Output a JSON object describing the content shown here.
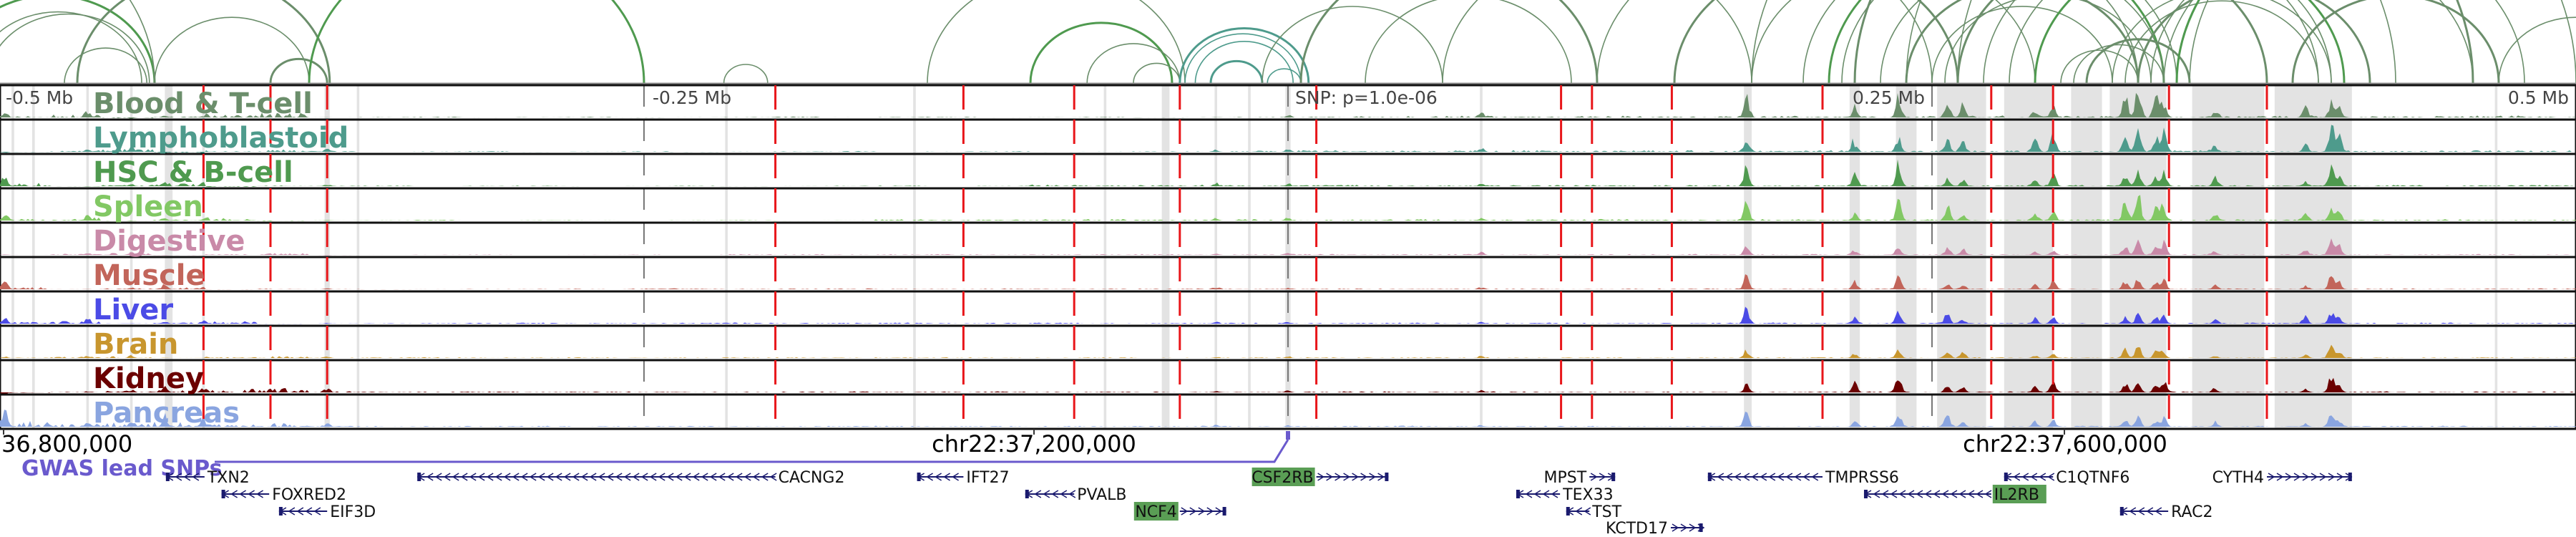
{
  "chart_data": {
    "type": "area",
    "title": "",
    "region": {
      "chrom": "chr22",
      "center_snp_offset_kb": 0,
      "window_kb": [
        -500,
        500
      ]
    },
    "axis_top": {
      "labels": [
        "-0.5 Mb",
        "-0.25 Mb",
        "SNP: p=1.0e-06",
        "0.25 Mb",
        "0.5 Mb"
      ],
      "values_kb": [
        -500,
        -250,
        0,
        250,
        500
      ]
    },
    "axis_bottom": {
      "labels": [
        "36,800,000",
        "chr22:37,200,000",
        "chr22:37,600,000"
      ],
      "values_kb": [
        -498.6,
        -98.6,
        301.4
      ]
    },
    "tracks": [
      {
        "name": "Blood & T-cell",
        "color": "#6b8e6b",
        "scale": 1.0
      },
      {
        "name": "Lymphoblastoid",
        "color": "#4e9b8c",
        "scale": 0.9
      },
      {
        "name": "HSC & B-cell",
        "color": "#4f9a4f",
        "scale": 0.8
      },
      {
        "name": "Spleen",
        "color": "#82c864",
        "scale": 0.8
      },
      {
        "name": "Digestive",
        "color": "#c98aa8",
        "scale": 0.5
      },
      {
        "name": "Muscle",
        "color": "#c2655a",
        "scale": 0.5
      },
      {
        "name": "Liver",
        "color": "#4b4be6",
        "scale": 0.6
      },
      {
        "name": "Brain",
        "color": "#c8962e",
        "scale": 0.4
      },
      {
        "name": "Kidney",
        "color": "#6b0000",
        "scale": 0.55
      },
      {
        "name": "Pancreas",
        "color": "#8aa5e0",
        "scale": 0.55
      }
    ],
    "peaks_kb": [
      [
        -498,
        0.9
      ],
      [
        -466,
        0.4
      ],
      [
        -449,
        0.3
      ],
      [
        -436,
        0.5
      ],
      [
        -421,
        0.4
      ],
      [
        -373,
        0.2
      ],
      [
        -28,
        0.1
      ],
      [
        0,
        0.12
      ],
      [
        75,
        0.15
      ],
      [
        178,
        0.9
      ],
      [
        220,
        0.5
      ],
      [
        237,
        0.95
      ],
      [
        256,
        0.6
      ],
      [
        262,
        0.4
      ],
      [
        290,
        0.35
      ],
      [
        297,
        0.55
      ],
      [
        325,
        0.7
      ],
      [
        330,
        1.0
      ],
      [
        337,
        0.6
      ],
      [
        340,
        0.7
      ],
      [
        360,
        0.3
      ],
      [
        395,
        0.35
      ],
      [
        405,
        1.0
      ],
      [
        408,
        0.6
      ]
    ],
    "shaded_regions_kb": [
      [
        -495.5,
        -494.5
      ],
      [
        -487.5,
        -486.5
      ],
      [
        -466.5,
        -465.5
      ],
      [
        -449.5,
        -448.5
      ],
      [
        -436,
        -433
      ],
      [
        -421.5,
        -420.5
      ],
      [
        -374,
        -372
      ],
      [
        -361.5,
        -360.5
      ],
      [
        -218.5,
        -217.5
      ],
      [
        -145.5,
        -144.5
      ],
      [
        -71.5,
        -70.5
      ],
      [
        -49,
        -46
      ],
      [
        -28.5,
        -27.5
      ],
      [
        -15.5,
        -14.5
      ],
      [
        -1,
        1
      ],
      [
        74.5,
        75.5
      ],
      [
        177,
        180
      ],
      [
        218,
        222
      ],
      [
        236,
        244
      ],
      [
        252,
        271
      ],
      [
        278,
        297
      ],
      [
        304,
        316
      ],
      [
        319,
        341
      ],
      [
        351,
        379
      ],
      [
        383,
        413
      ],
      [
        468.5,
        469.5
      ]
    ],
    "red_lines_kb": [
      -421,
      -395,
      -373,
      -199,
      -126,
      -83,
      -42,
      11,
      106,
      118,
      149,
      207.5,
      273,
      297,
      342,
      380
    ],
    "loops_kb": [
      [
        -520,
        -440
      ],
      [
        -510,
        -445
      ],
      [
        -505,
        -442
      ],
      [
        -470,
        -372
      ],
      [
        -440,
        -380
      ],
      [
        -475,
        -443
      ],
      [
        -395,
        -373
      ],
      [
        -219,
        -202
      ],
      [
        -140,
        -40
      ],
      [
        -100,
        -45
      ],
      [
        -78,
        -42
      ],
      [
        -60,
        -42
      ],
      [
        -42,
        8
      ],
      [
        -40,
        5
      ],
      [
        -36,
        2
      ],
      [
        -30,
        -10
      ],
      [
        -8,
        5
      ],
      [
        -600,
        -440
      ],
      [
        -380,
        -250
      ],
      [
        30,
        110
      ],
      [
        -10,
        60
      ],
      [
        5,
        120
      ],
      [
        60,
        180
      ],
      [
        120,
        250
      ],
      [
        150,
        260
      ],
      [
        180,
        290
      ],
      [
        200,
        330
      ],
      [
        210,
        340
      ],
      [
        215,
        345
      ],
      [
        230,
        340
      ],
      [
        240,
        330
      ],
      [
        250,
        320
      ],
      [
        255,
        335
      ],
      [
        260,
        380
      ],
      [
        270,
        400
      ],
      [
        280,
        405
      ],
      [
        290,
        410
      ],
      [
        300,
        330
      ],
      [
        305,
        340
      ],
      [
        310,
        350
      ],
      [
        320,
        405
      ],
      [
        325,
        400
      ],
      [
        330,
        420
      ],
      [
        335,
        460
      ],
      [
        340,
        480
      ],
      [
        345,
        520
      ],
      [
        350,
        560
      ],
      [
        180,
        430
      ],
      [
        220,
        460
      ],
      [
        240,
        500
      ],
      [
        260,
        540
      ],
      [
        390,
        470
      ],
      [
        470,
        530
      ]
    ],
    "gwas_label": "GWAS lead SNPs",
    "gwas_color": "#6a5acd",
    "genes": [
      {
        "name": "TXN2",
        "start": -435.6,
        "end": -420.6,
        "strand": "-",
        "row": 0,
        "highlight": false
      },
      {
        "name": "CACNG2",
        "start": -338,
        "end": -199,
        "strand": "-",
        "row": 0,
        "highlight": false
      },
      {
        "name": "IFT27",
        "start": -144,
        "end": -126,
        "strand": "-",
        "row": 0,
        "highlight": false
      },
      {
        "name": "CSF2RB",
        "start": 11,
        "end": 39,
        "strand": "+",
        "row": 0,
        "highlight": true
      },
      {
        "name": "MPST",
        "start": 117,
        "end": 127,
        "strand": "+",
        "row": 0,
        "highlight": false
      },
      {
        "name": "TMPRSS6",
        "start": 163,
        "end": 207.5,
        "strand": "-",
        "row": 0,
        "highlight": false
      },
      {
        "name": "C1QTNF6",
        "start": 278,
        "end": 297,
        "strand": "-",
        "row": 0,
        "highlight": false
      },
      {
        "name": "CYTH4",
        "start": 380,
        "end": 413,
        "strand": "+",
        "row": 0,
        "highlight": false
      },
      {
        "name": "FOXRED2",
        "start": -414,
        "end": -395.5,
        "strand": "-",
        "row": 1,
        "highlight": false
      },
      {
        "name": "PVALB",
        "start": -102,
        "end": -83,
        "strand": "-",
        "row": 1,
        "highlight": false
      },
      {
        "name": "TEX33",
        "start": 88.6,
        "end": 105.6,
        "strand": "-",
        "row": 1,
        "highlight": false
      },
      {
        "name": "IL2RB",
        "start": 223.6,
        "end": 273,
        "strand": "-",
        "row": 1,
        "highlight": true
      },
      {
        "name": "EIF3D",
        "start": -391.7,
        "end": -373,
        "strand": "-",
        "row": 2,
        "highlight": false
      },
      {
        "name": "NCF4",
        "start": -42,
        "end": -24,
        "strand": "+",
        "row": 2,
        "highlight": true
      },
      {
        "name": "TST",
        "start": 108,
        "end": 117,
        "strand": "-",
        "row": 2,
        "highlight": false
      },
      {
        "name": "RAC2",
        "start": 323,
        "end": 341.7,
        "strand": "-",
        "row": 2,
        "highlight": false
      },
      {
        "name": "KCTD17",
        "start": 148.6,
        "end": 161,
        "strand": "+",
        "row": 3,
        "highlight": false
      }
    ]
  }
}
